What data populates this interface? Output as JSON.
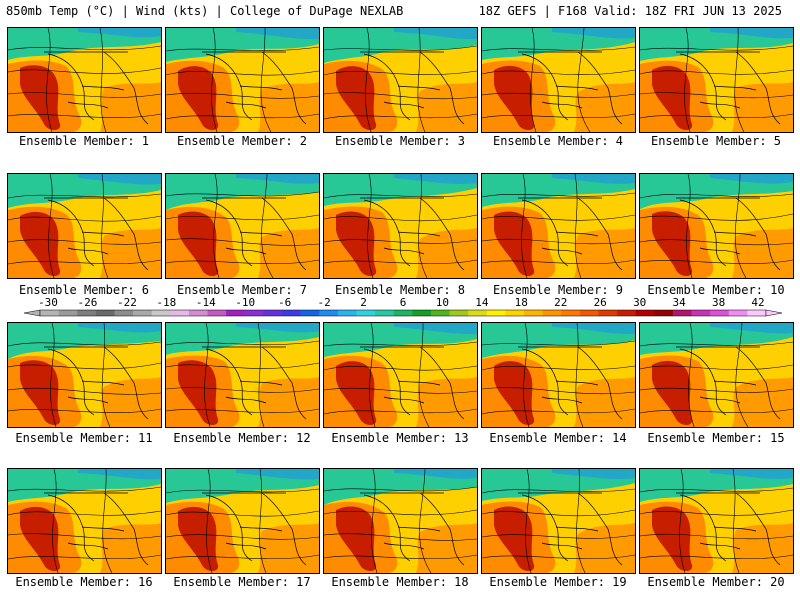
{
  "header": {
    "left": "850mb Temp (°C) | Wind (kts) | College of DuPage NEXLAB",
    "right": "18Z GEFS | F168 Valid: 18Z FRI JUN 13 2025"
  },
  "caption_prefix": "Ensemble Member:",
  "members": [
    {
      "label": "Ensemble Member: 1"
    },
    {
      "label": "Ensemble Member: 2"
    },
    {
      "label": "Ensemble Member: 3"
    },
    {
      "label": "Ensemble Member: 4"
    },
    {
      "label": "Ensemble Member: 5"
    },
    {
      "label": "Ensemble Member: 6"
    },
    {
      "label": "Ensemble Member: 7"
    },
    {
      "label": "Ensemble Member: 8"
    },
    {
      "label": "Ensemble Member: 9"
    },
    {
      "label": "Ensemble Member: 10"
    },
    {
      "label": "Ensemble Member: 11"
    },
    {
      "label": "Ensemble Member: 12"
    },
    {
      "label": "Ensemble Member: 13"
    },
    {
      "label": "Ensemble Member: 14"
    },
    {
      "label": "Ensemble Member: 15"
    },
    {
      "label": "Ensemble Member: 16"
    },
    {
      "label": "Ensemble Member: 17"
    },
    {
      "label": "Ensemble Member: 18"
    },
    {
      "label": "Ensemble Member: 19"
    },
    {
      "label": "Ensemble Member: 20"
    }
  ],
  "colorbar": {
    "labels": [
      "-30",
      "-26",
      "-22",
      "-18",
      "-14",
      "-10",
      "-6",
      "-2",
      "2",
      "6",
      "10",
      "14",
      "18",
      "22",
      "26",
      "30",
      "34",
      "38",
      "42"
    ],
    "colors": [
      "#b4b4b4",
      "#9a9a9a",
      "#7e7e7e",
      "#6a6a6a",
      "#8c8c8c",
      "#a8a8a8",
      "#c8c8c8",
      "#e6b8e6",
      "#d28cd2",
      "#c35ac3",
      "#a020c0",
      "#8c2cd4",
      "#6432dc",
      "#3c3ce6",
      "#1464e6",
      "#1e8cf0",
      "#28b4f0",
      "#32d2dc",
      "#28c8a0",
      "#1eb464",
      "#14a028",
      "#50b41e",
      "#a0c81e",
      "#dcdc14",
      "#fff000",
      "#ffd200",
      "#ffb400",
      "#ff9600",
      "#ff7800",
      "#f05a00",
      "#dc3c00",
      "#c81e00",
      "#b40000",
      "#960000",
      "#b4146e",
      "#c832b4",
      "#dc50dc",
      "#f08cf0",
      "#fcc8fc"
    ]
  },
  "colors": {
    "hot": "#c81e00",
    "warm": "#ff8c00",
    "mild": "#ffd000",
    "cool": "#28c896",
    "cold": "#1e8cf0"
  }
}
